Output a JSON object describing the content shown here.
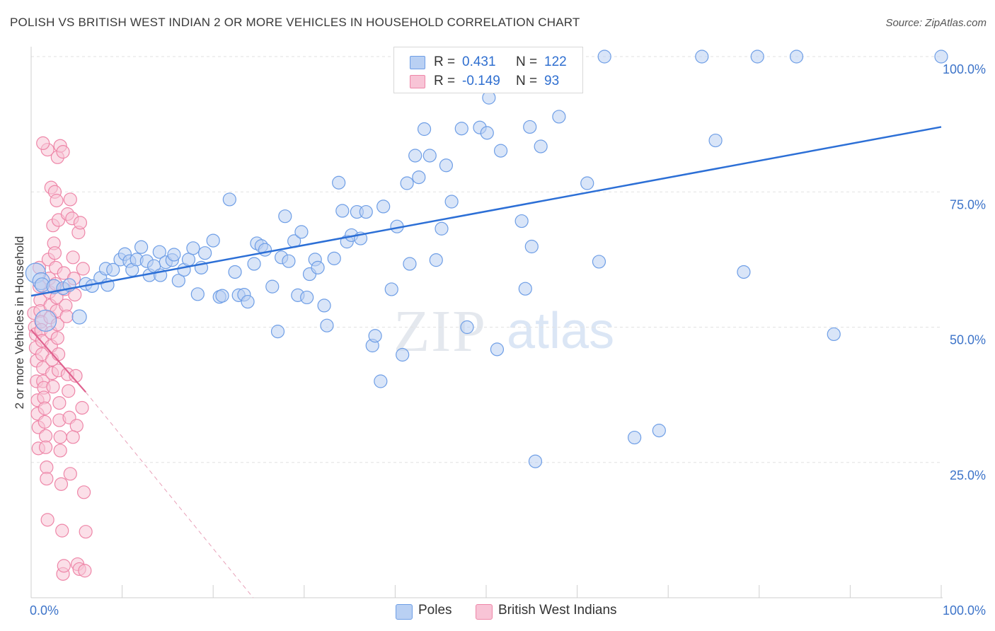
{
  "title": "POLISH VS BRITISH WEST INDIAN 2 OR MORE VEHICLES IN HOUSEHOLD CORRELATION CHART",
  "source": "Source: ZipAtlas.com",
  "watermark": {
    "zip": "ZIP",
    "atlas": "atlas"
  },
  "legend_top": {
    "rows": [
      {
        "r_label": "R =",
        "r_value": "0.431",
        "n_label": "N =",
        "n_value": "122",
        "color": "#6e9ee6",
        "fill": "#b9d0f3"
      },
      {
        "r_label": "R =",
        "r_value": "-0.149",
        "n_label": "N =",
        "n_value": "93",
        "color": "#ee86a8",
        "fill": "#f8c4d6"
      }
    ]
  },
  "legend_bottom": [
    {
      "label": "Poles",
      "color": "#6e9ee6",
      "fill": "#b9d0f3"
    },
    {
      "label": "British West Indians",
      "color": "#ee86a8",
      "fill": "#f8c4d6"
    }
  ],
  "chart_data": {
    "type": "scatter",
    "title": "POLISH VS BRITISH WEST INDIAN 2 OR MORE VEHICLES IN HOUSEHOLD CORRELATION CHART",
    "xlabel": "",
    "ylabel": "2 or more Vehicles in Household",
    "xlim": [
      0,
      100
    ],
    "ylim": [
      0,
      100
    ],
    "x_ticks": [
      {
        "value": 0,
        "label": "0.0%"
      },
      {
        "value": 100,
        "label": "100.0%"
      }
    ],
    "y_ticks": [
      {
        "value": 25,
        "label": "25.0%"
      },
      {
        "value": 50,
        "label": "50.0%"
      },
      {
        "value": 75,
        "label": "75.0%"
      },
      {
        "value": 100,
        "label": "100.0%"
      }
    ],
    "grid": "horizontal dashed",
    "series": [
      {
        "name": "Poles",
        "color": "#6e9ee6",
        "fill": "#b9d0f3",
        "trend": {
          "x": [
            0,
            100
          ],
          "y": [
            55.8,
            87.0
          ],
          "style": "solid"
        },
        "points": [
          [
            0.5,
            60.0,
            14
          ],
          [
            1.1,
            58.5,
            12
          ],
          [
            1.6,
            51.2,
            15
          ],
          [
            1.2,
            57.8,
            10
          ],
          [
            2.5,
            57.5,
            10
          ],
          [
            3.5,
            57.2,
            9
          ],
          [
            4.2,
            57.8,
            9
          ],
          [
            5.3,
            51.9,
            10
          ],
          [
            6.0,
            58.0,
            9
          ],
          [
            6.7,
            57.6,
            9
          ],
          [
            7.6,
            59.1,
            9
          ],
          [
            8.2,
            60.8,
            9
          ],
          [
            8.4,
            57.8,
            9
          ],
          [
            9.0,
            60.6,
            9
          ],
          [
            9.8,
            62.5,
            9
          ],
          [
            10.3,
            63.5,
            9
          ],
          [
            10.8,
            62.2,
            9
          ],
          [
            11.1,
            60.6,
            9
          ],
          [
            11.6,
            62.5,
            9
          ],
          [
            12.1,
            64.8,
            9
          ],
          [
            12.7,
            62.2,
            9
          ],
          [
            13.0,
            59.6,
            9
          ],
          [
            13.5,
            61.3,
            9
          ],
          [
            14.2,
            59.6,
            9
          ],
          [
            14.1,
            63.9,
            9
          ],
          [
            14.8,
            62.0,
            9
          ],
          [
            15.5,
            62.4,
            9
          ],
          [
            15.7,
            63.4,
            9
          ],
          [
            16.2,
            58.6,
            9
          ],
          [
            16.8,
            60.6,
            9
          ],
          [
            17.3,
            62.5,
            9
          ],
          [
            17.8,
            64.6,
            9
          ],
          [
            18.3,
            56.1,
            9
          ],
          [
            18.7,
            61.0,
            9
          ],
          [
            19.1,
            63.7,
            9
          ],
          [
            20.0,
            66.0,
            9
          ],
          [
            20.7,
            55.6,
            9
          ],
          [
            21.0,
            55.8,
            9
          ],
          [
            21.8,
            73.6,
            9
          ],
          [
            22.4,
            60.2,
            9
          ],
          [
            22.8,
            55.9,
            9
          ],
          [
            23.4,
            56.0,
            9
          ],
          [
            23.8,
            54.7,
            9
          ],
          [
            24.5,
            61.7,
            9
          ],
          [
            24.8,
            65.5,
            9
          ],
          [
            25.3,
            65.0,
            9
          ],
          [
            25.7,
            64.3,
            9
          ],
          [
            26.5,
            57.5,
            9
          ],
          [
            27.1,
            49.2,
            9
          ],
          [
            27.5,
            62.9,
            9
          ],
          [
            27.9,
            70.5,
            9
          ],
          [
            28.3,
            62.2,
            9
          ],
          [
            28.9,
            65.9,
            9
          ],
          [
            29.3,
            55.9,
            9
          ],
          [
            29.7,
            67.6,
            9
          ],
          [
            30.3,
            55.5,
            9
          ],
          [
            30.6,
            59.8,
            9
          ],
          [
            31.2,
            62.5,
            9
          ],
          [
            31.5,
            61.0,
            9
          ],
          [
            32.2,
            54.0,
            9
          ],
          [
            32.5,
            50.3,
            9
          ],
          [
            33.3,
            62.7,
            9
          ],
          [
            33.8,
            76.7,
            9
          ],
          [
            34.2,
            71.5,
            9
          ],
          [
            34.7,
            65.8,
            9
          ],
          [
            35.2,
            67.0,
            9
          ],
          [
            35.8,
            71.3,
            9
          ],
          [
            36.2,
            66.4,
            9
          ],
          [
            36.8,
            71.3,
            9
          ],
          [
            37.5,
            46.6,
            9
          ],
          [
            37.8,
            48.4,
            9
          ],
          [
            38.4,
            40.0,
            9
          ],
          [
            38.7,
            72.3,
            9
          ],
          [
            39.6,
            57.0,
            9
          ],
          [
            40.2,
            68.6,
            9
          ],
          [
            40.8,
            44.9,
            9
          ],
          [
            41.3,
            76.6,
            9
          ],
          [
            41.6,
            61.7,
            9
          ],
          [
            42.2,
            81.7,
            9
          ],
          [
            42.6,
            77.7,
            9
          ],
          [
            43.2,
            86.6,
            9
          ],
          [
            43.8,
            81.7,
            9
          ],
          [
            44.5,
            62.4,
            9
          ],
          [
            45.1,
            68.2,
            9
          ],
          [
            45.6,
            79.9,
            9
          ],
          [
            46.2,
            73.2,
            9
          ],
          [
            46.8,
            95.1,
            9
          ],
          [
            47.3,
            86.7,
            9
          ],
          [
            47.9,
            50.0,
            9
          ],
          [
            48.5,
            100.0,
            9
          ],
          [
            48.7,
            100.0,
            9
          ],
          [
            49.3,
            86.9,
            9
          ],
          [
            50.1,
            85.9,
            9
          ],
          [
            50.3,
            92.4,
            9
          ],
          [
            51.2,
            45.9,
            9
          ],
          [
            51.6,
            82.6,
            9
          ],
          [
            53.3,
            100.0,
            9
          ],
          [
            53.6,
            100.0,
            9
          ],
          [
            53.9,
            69.6,
            9
          ],
          [
            54.3,
            57.1,
            9
          ],
          [
            54.8,
            87.0,
            9
          ],
          [
            55.0,
            64.9,
            9
          ],
          [
            55.4,
            25.2,
            9
          ],
          [
            56.0,
            83.4,
            9
          ],
          [
            58.0,
            88.9,
            9
          ],
          [
            61.1,
            76.6,
            9
          ],
          [
            62.4,
            62.1,
            9
          ],
          [
            63.0,
            100.0,
            9
          ],
          [
            66.3,
            29.6,
            9
          ],
          [
            69.0,
            30.9,
            9
          ],
          [
            73.7,
            100.0,
            9
          ],
          [
            75.2,
            84.5,
            9
          ],
          [
            78.3,
            60.2,
            9
          ],
          [
            79.8,
            100.0,
            9
          ],
          [
            84.1,
            100.0,
            9
          ],
          [
            88.2,
            48.7,
            9
          ],
          [
            100.0,
            100.0,
            9
          ]
        ]
      },
      {
        "name": "British West Indians",
        "color": "#ee86a8",
        "fill": "#f8c4d6",
        "trend": {
          "x": [
            0,
            6.0
          ],
          "y": [
            49.5,
            38.0
          ],
          "style": "solid",
          "extension": {
            "x": [
              6.0,
              24.4
            ],
            "y": [
              38.0,
              0
            ],
            "style": "dashed"
          }
        },
        "points": [
          [
            0.3,
            52.6,
            9
          ],
          [
            0.4,
            50.0,
            9
          ],
          [
            0.5,
            48.7,
            9
          ],
          [
            0.5,
            46.2,
            9
          ],
          [
            0.6,
            43.8,
            9
          ],
          [
            0.6,
            40.0,
            9
          ],
          [
            0.7,
            36.5,
            9
          ],
          [
            0.7,
            34.0,
            9
          ],
          [
            0.8,
            31.5,
            9
          ],
          [
            0.8,
            27.6,
            9
          ],
          [
            0.9,
            61.0,
            9
          ],
          [
            0.9,
            57.5,
            9
          ],
          [
            1.0,
            55.0,
            9
          ],
          [
            1.0,
            53.0,
            9
          ],
          [
            1.1,
            51.0,
            9
          ],
          [
            1.1,
            49.5,
            9
          ],
          [
            1.2,
            47.5,
            9
          ],
          [
            1.2,
            45.0,
            9
          ],
          [
            1.3,
            42.5,
            9
          ],
          [
            1.3,
            40.0,
            9
          ],
          [
            1.4,
            38.8,
            9
          ],
          [
            1.4,
            37.0,
            9
          ],
          [
            1.5,
            35.0,
            9
          ],
          [
            1.5,
            32.5,
            9
          ],
          [
            1.6,
            29.9,
            9
          ],
          [
            1.6,
            27.8,
            9
          ],
          [
            1.7,
            24.1,
            9
          ],
          [
            1.7,
            22.0,
            9
          ],
          [
            1.8,
            14.4,
            9
          ],
          [
            1.9,
            62.5,
            9
          ],
          [
            2.0,
            59.0,
            9
          ],
          [
            2.0,
            56.5,
            9
          ],
          [
            2.1,
            54.0,
            9
          ],
          [
            2.1,
            51.8,
            9
          ],
          [
            2.2,
            49.0,
            9
          ],
          [
            2.2,
            46.5,
            9
          ],
          [
            2.3,
            44.0,
            9
          ],
          [
            2.3,
            41.5,
            9
          ],
          [
            2.4,
            39.0,
            9
          ],
          [
            1.8,
            82.8,
            9
          ],
          [
            2.2,
            75.8,
            9
          ],
          [
            2.4,
            68.8,
            9
          ],
          [
            2.5,
            65.5,
            9
          ],
          [
            2.6,
            63.7,
            9
          ],
          [
            2.7,
            61.0,
            9
          ],
          [
            2.7,
            58.0,
            9
          ],
          [
            2.8,
            55.5,
            9
          ],
          [
            2.8,
            53.0,
            9
          ],
          [
            2.9,
            50.5,
            9
          ],
          [
            2.9,
            48.0,
            9
          ],
          [
            3.0,
            45.0,
            9
          ],
          [
            3.0,
            42.0,
            9
          ],
          [
            3.1,
            36.0,
            9
          ],
          [
            3.1,
            32.8,
            9
          ],
          [
            3.2,
            29.7,
            9
          ],
          [
            3.2,
            27.2,
            9
          ],
          [
            3.3,
            21.0,
            9
          ],
          [
            3.4,
            12.4,
            9
          ],
          [
            3.5,
            4.4,
            9
          ],
          [
            2.6,
            75.0,
            9
          ],
          [
            2.8,
            73.4,
            9
          ],
          [
            3.0,
            69.8,
            9
          ],
          [
            2.9,
            81.4,
            9
          ],
          [
            3.2,
            83.5,
            9
          ],
          [
            3.5,
            82.4,
            9
          ],
          [
            3.6,
            60.0,
            9
          ],
          [
            3.7,
            57.0,
            9
          ],
          [
            3.8,
            54.0,
            9
          ],
          [
            3.9,
            52.0,
            9
          ],
          [
            4.0,
            41.3,
            9
          ],
          [
            4.1,
            38.2,
            9
          ],
          [
            4.2,
            33.3,
            9
          ],
          [
            4.3,
            22.9,
            9
          ],
          [
            3.6,
            5.9,
            9
          ],
          [
            4.0,
            70.9,
            9
          ],
          [
            4.3,
            73.6,
            9
          ],
          [
            4.5,
            70.1,
            9
          ],
          [
            4.6,
            62.9,
            9
          ],
          [
            4.7,
            59.0,
            9
          ],
          [
            4.8,
            56.0,
            9
          ],
          [
            4.9,
            41.0,
            9
          ],
          [
            5.0,
            31.8,
            9
          ],
          [
            5.1,
            6.2,
            9
          ],
          [
            5.3,
            5.3,
            9
          ],
          [
            5.6,
            35.1,
            9
          ],
          [
            5.2,
            67.5,
            9
          ],
          [
            5.4,
            69.3,
            9
          ],
          [
            5.7,
            60.8,
            9
          ],
          [
            5.8,
            19.5,
            9
          ],
          [
            6.0,
            12.2,
            9
          ],
          [
            4.6,
            29.7,
            9
          ],
          [
            5.9,
            5.0,
            9
          ],
          [
            1.3,
            84.0,
            9
          ]
        ]
      }
    ]
  }
}
